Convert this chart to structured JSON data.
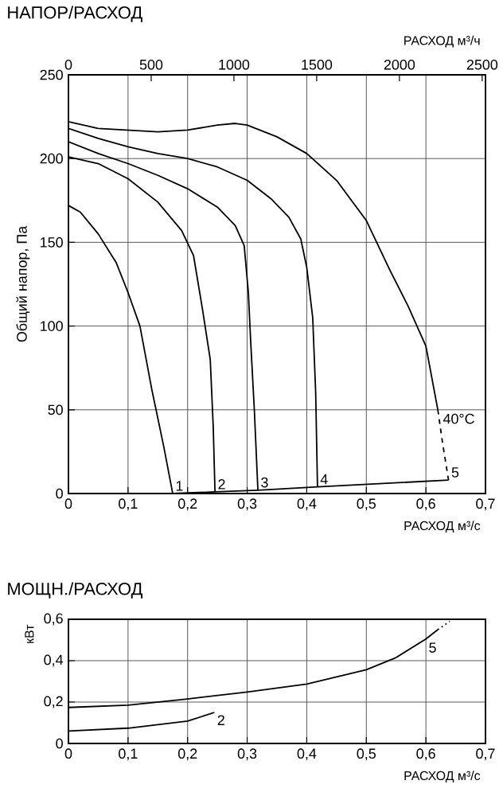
{
  "chart_data": [
    {
      "type": "line",
      "title": "НАПОР/РАСХОД",
      "xlabel": "РАСХОД м³/с",
      "x2label": "РАСХОД м³/ч",
      "ylabel": "Общий напор, Па",
      "xlim": [
        0,
        0.7
      ],
      "xticks": [
        0,
        {
          "value": 0.1,
          "label": "0,1"
        },
        {
          "value": 0.2,
          "label": "0,2"
        },
        {
          "value": 0.3,
          "label": "0,3"
        },
        {
          "value": 0.4,
          "label": "0,4"
        },
        {
          "value": 0.5,
          "label": "0,5"
        },
        {
          "value": 0.6,
          "label": "0,6"
        },
        {
          "value": 0.7,
          "label": "0,7"
        }
      ],
      "x2lim": [
        0,
        2520
      ],
      "x2ticks": [
        0,
        500,
        1000,
        1500,
        2000,
        2500
      ],
      "ylim": [
        0,
        250
      ],
      "yticks": [
        0,
        50,
        100,
        150,
        200,
        250
      ],
      "grid": true,
      "line_style": "solid",
      "series": [
        {
          "color": "#000000",
          "x": [
            0,
            0.02,
            0.05,
            0.08,
            0.1,
            0.12,
            0.14,
            0.16,
            0.175
          ],
          "values": [
            172,
            168,
            155,
            138,
            120,
            100,
            62,
            28,
            0
          ]
        },
        {
          "color": "#000000",
          "x": [
            0,
            0.05,
            0.1,
            0.15,
            0.19,
            0.21,
            0.225,
            0.238,
            0.243,
            0.246
          ],
          "values": [
            201,
            197,
            188,
            174,
            157,
            142,
            110,
            80,
            40,
            1
          ]
        },
        {
          "color": "#000000",
          "x": [
            0,
            0.05,
            0.1,
            0.15,
            0.2,
            0.25,
            0.28,
            0.295,
            0.302,
            0.306,
            0.312,
            0.318
          ],
          "values": [
            210,
            203,
            197,
            190,
            182,
            171,
            160,
            148,
            120,
            90,
            50,
            2
          ]
        },
        {
          "color": "#000000",
          "x": [
            0,
            0.05,
            0.1,
            0.15,
            0.2,
            0.25,
            0.3,
            0.34,
            0.37,
            0.39,
            0.4,
            0.41,
            0.415,
            0.418
          ],
          "values": [
            218,
            212,
            207,
            203,
            200,
            195,
            187,
            176,
            165,
            152,
            135,
            105,
            60,
            4
          ]
        },
        {
          "color": "#000000",
          "x": [
            0,
            0.05,
            0.1,
            0.15,
            0.2,
            0.25,
            0.28,
            0.3,
            0.35,
            0.4,
            0.45,
            0.5,
            0.54,
            0.57,
            0.6,
            0.62
          ],
          "values": [
            222,
            218,
            217,
            216,
            217,
            220,
            221,
            220,
            213,
            203,
            187,
            163,
            133,
            112,
            88,
            50
          ]
        },
        {
          "color": "#000000",
          "line_style": "dashed",
          "x": [
            0.62,
            0.628,
            0.638
          ],
          "values": [
            50,
            30,
            8
          ]
        },
        {
          "color": "#000000",
          "x": [
            0,
            0.175,
            0.246,
            0.318,
            0.418,
            0.638
          ],
          "values": [
            0,
            0,
            1,
            2,
            4,
            8
          ]
        }
      ],
      "annotations": [
        {
          "text": "1",
          "x": 0.175,
          "y": 0
        },
        {
          "text": "2",
          "x": 0.246,
          "y": 1
        },
        {
          "text": "3",
          "x": 0.318,
          "y": 2
        },
        {
          "text": "4",
          "x": 0.418,
          "y": 4
        },
        {
          "text": "5",
          "x": 0.638,
          "y": 8
        },
        {
          "text": "40°C",
          "x": 0.624,
          "y": 40
        }
      ]
    },
    {
      "type": "line",
      "title": "МОЩН./РАСХОД",
      "xlabel": "РАСХОД м³/с",
      "ylabel": "кВт",
      "xlim": [
        0,
        0.7
      ],
      "xticks": [
        0,
        {
          "value": 0.1,
          "label": "0,1"
        },
        {
          "value": 0.2,
          "label": "0,2"
        },
        {
          "value": 0.3,
          "label": "0,3"
        },
        {
          "value": 0.4,
          "label": "0,4"
        },
        {
          "value": 0.5,
          "label": "0,5"
        },
        {
          "value": 0.6,
          "label": "0,6"
        },
        {
          "value": 0.7,
          "label": "0,7"
        }
      ],
      "ylim": [
        0,
        0.6
      ],
      "yticks": [
        0,
        {
          "value": 0.2,
          "label": "0,2"
        },
        {
          "value": 0.4,
          "label": "0,4"
        },
        {
          "value": 0.6,
          "label": "0,6"
        }
      ],
      "grid": true,
      "line_style": "solid",
      "series": [
        {
          "color": "#000000",
          "x": [
            0,
            0.1,
            0.2,
            0.3,
            0.4,
            0.5,
            0.55,
            0.6,
            0.62
          ],
          "values": [
            0.174,
            0.185,
            0.215,
            0.249,
            0.287,
            0.356,
            0.415,
            0.505,
            0.55
          ]
        },
        {
          "color": "#000000",
          "line_style": "dotted",
          "x": [
            0.62,
            0.64
          ],
          "values": [
            0.55,
            0.59
          ]
        },
        {
          "color": "#000000",
          "x": [
            0,
            0.1,
            0.2,
            0.245
          ],
          "values": [
            0.06,
            0.074,
            0.108,
            0.15
          ]
        }
      ],
      "annotations": [
        {
          "text": "5",
          "x": 0.6,
          "y": 0.5
        },
        {
          "text": "2",
          "x": 0.245,
          "y": 0.15
        }
      ]
    }
  ]
}
